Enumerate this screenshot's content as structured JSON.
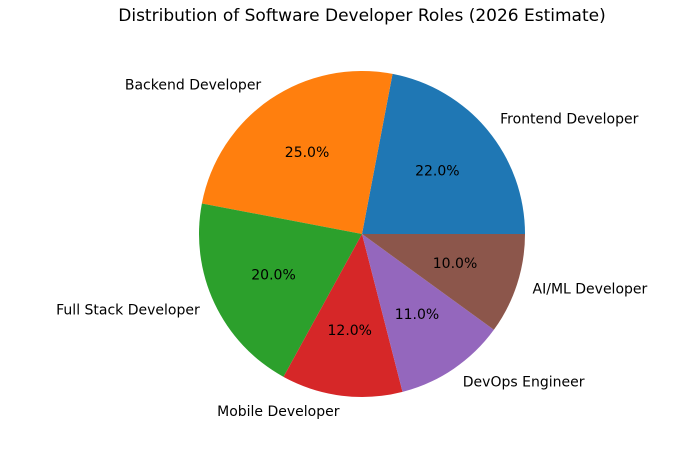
{
  "chart_data": {
    "type": "pie",
    "title": "Distribution of Software Developer Roles (2026 Estimate)",
    "categories": [
      "Frontend Developer",
      "Backend Developer",
      "Full Stack Developer",
      "Mobile Developer",
      "DevOps Engineer",
      "AI/ML Developer"
    ],
    "values": [
      22,
      25,
      20,
      12,
      11,
      10
    ],
    "value_labels": [
      "22.0%",
      "25.0%",
      "20.0%",
      "12.0%",
      "11.0%",
      "10.0%"
    ],
    "colors": [
      "#1f77b4",
      "#ff7f0e",
      "#2ca02c",
      "#d62728",
      "#9467bd",
      "#8c564b"
    ]
  }
}
